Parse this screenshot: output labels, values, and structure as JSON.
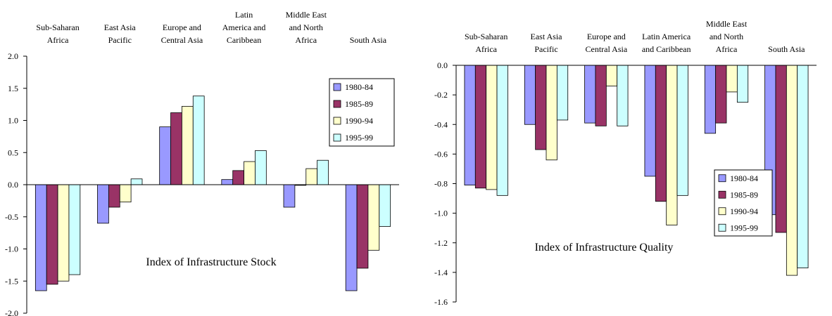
{
  "chart_data": [
    {
      "type": "bar",
      "annotation": "Index of Infrastructure Stock",
      "categories": [
        [
          "Sub-Saharan",
          "Africa"
        ],
        [
          "East Asia",
          "Pacific"
        ],
        [
          "Europe and",
          "Central Asia"
        ],
        [
          "Latin",
          "America and",
          "Caribbean"
        ],
        [
          "Middle East",
          "and North",
          "Africa"
        ],
        [
          "South Asia"
        ]
      ],
      "series": [
        {
          "name": "1980-84",
          "color": "#9999ff",
          "values": [
            -1.65,
            -0.6,
            0.9,
            0.08,
            -0.35,
            -1.65
          ]
        },
        {
          "name": "1985-89",
          "color": "#993366",
          "values": [
            -1.55,
            -0.35,
            1.12,
            0.22,
            -0.01,
            -1.3
          ]
        },
        {
          "name": "1990-94",
          "color": "#ffffcc",
          "values": [
            -1.5,
            -0.27,
            1.22,
            0.36,
            0.25,
            -1.02
          ]
        },
        {
          "name": "1995-99",
          "color": "#ccffff",
          "values": [
            -1.4,
            0.09,
            1.38,
            0.53,
            0.38,
            -0.65
          ]
        }
      ],
      "ylim": [
        -2,
        2
      ],
      "yticks": [
        {
          "value": 2,
          "label": "2.0"
        },
        1.5,
        {
          "value": 1,
          "label": "1.0"
        },
        0.5,
        {
          "value": 0,
          "label": "0.0"
        },
        -0.5,
        {
          "value": -1,
          "label": "-1.0"
        },
        -1.5,
        {
          "value": -2,
          "label": "-2.0"
        }
      ]
    },
    {
      "type": "bar",
      "annotation": "Index of Infrastructure Quality",
      "categories": [
        [
          "Sub-Saharan",
          "Africa"
        ],
        [
          "East Asia",
          "Pacific"
        ],
        [
          "Europe and",
          "Central Asia"
        ],
        [
          "Latin America",
          "and Caribbean"
        ],
        [
          "Middle East",
          "and North",
          "Africa"
        ],
        [
          "South Asia"
        ]
      ],
      "series": [
        {
          "name": "1980-84",
          "color": "#9999ff",
          "values": [
            -0.81,
            -0.4,
            -0.39,
            -0.75,
            -0.46,
            -1.01
          ]
        },
        {
          "name": "1985-89",
          "color": "#993366",
          "values": [
            -0.83,
            -0.57,
            -0.41,
            -0.92,
            -0.39,
            -1.13
          ]
        },
        {
          "name": "1990-94",
          "color": "#ffffcc",
          "values": [
            -0.84,
            -0.64,
            -0.14,
            -1.08,
            -0.18,
            -1.42
          ]
        },
        {
          "name": "1995-99",
          "color": "#ccffff",
          "values": [
            -0.88,
            -0.37,
            -0.41,
            -0.88,
            -0.25,
            -1.37
          ]
        }
      ],
      "ylim": [
        -1.6,
        0
      ],
      "yticks": [
        {
          "value": 0,
          "label": "0.0"
        },
        -0.2,
        -0.4,
        -0.6,
        -0.8,
        {
          "value": -1,
          "label": "-1.0"
        },
        -1.2,
        -1.4,
        -1.6
      ]
    }
  ]
}
